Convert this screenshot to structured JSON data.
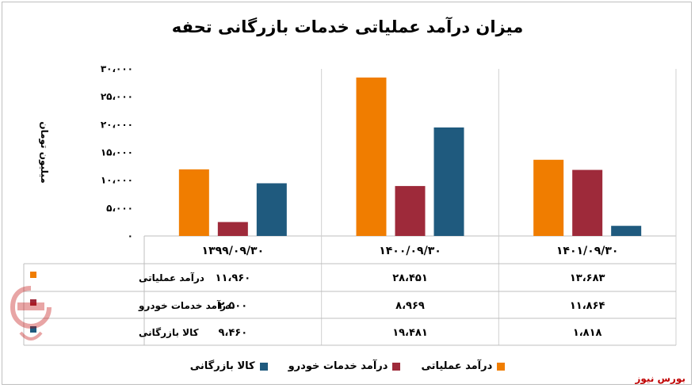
{
  "title": "میزان درآمد عملیاتی خدمات بازرگانی تحفه",
  "source": "بورس نیوز",
  "chart_data": {
    "type": "bar",
    "title": "میزان درآمد عملیاتی خدمات بازرگانی تحفه",
    "ylabel": "میلیون تومان",
    "ylim": [
      0,
      30000
    ],
    "yticks": [
      "۰",
      "۵،۰۰۰",
      "۱۰،۰۰۰",
      "۱۵،۰۰۰",
      "۲۰،۰۰۰",
      "۲۵،۰۰۰",
      "۳۰،۰۰۰"
    ],
    "ytick_values": [
      0,
      5000,
      10000,
      15000,
      20000,
      25000,
      30000
    ],
    "categories": [
      "۱۳۹۹/۰۹/۳۰",
      "۱۴۰۰/۰۹/۳۰",
      "۱۴۰۱/۰۹/۳۰"
    ],
    "series": [
      {
        "name": "درآمد عملیاتی",
        "color": "#f07d00",
        "values": [
          11960,
          28451,
          13683
        ],
        "labels": [
          "۱۱،۹۶۰",
          "۲۸،۴۵۱",
          "۱۳،۶۸۳"
        ]
      },
      {
        "name": "درآمد خدمات خودرو",
        "color": "#9e2a3a",
        "values": [
          2500,
          8969,
          11864
        ],
        "labels": [
          "۲،۵۰۰",
          "۸،۹۶۹",
          "۱۱،۸۶۴"
        ]
      },
      {
        "name": "کالا بازرگانی",
        "color": "#1f5a7e",
        "values": [
          9460,
          19481,
          1818
        ],
        "labels": [
          "۹،۴۶۰",
          "۱۹،۴۸۱",
          "۱،۸۱۸"
        ]
      }
    ],
    "grid": false,
    "legend": "bottom",
    "data_table": true
  }
}
